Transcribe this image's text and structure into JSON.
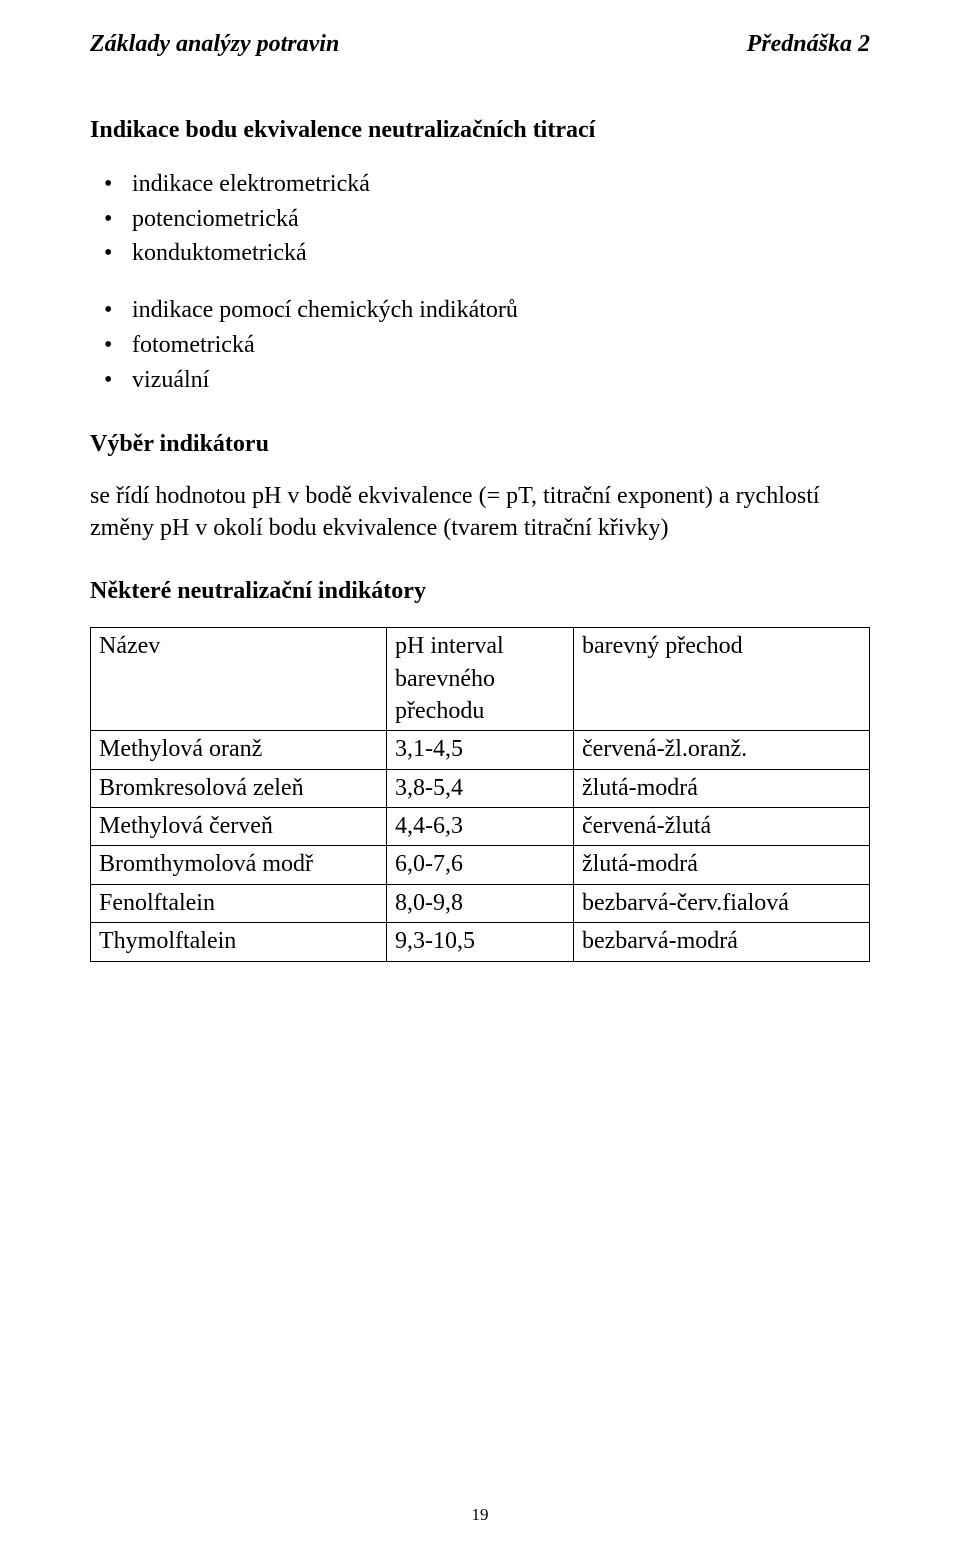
{
  "header": {
    "left": "Základy analýzy potravin",
    "right": "Přednáška 2"
  },
  "title_main": "Indikace bodu ekvivalence neutralizačních titrací",
  "bullets_block1": [
    "indikace elektrometrická",
    "potenciometrická",
    "konduktometrická"
  ],
  "bullets_block2": [
    "indikace pomocí chemických indikátorů",
    "fotometrická",
    "vizuální"
  ],
  "section_vyber_title": "Výběr indikátoru",
  "vyber_text": "se řídí hodnotou pH v bodě ekvivalence (= pT, titrační exponent) a rychlostí změny pH v okolí bodu ekvivalence (tvarem titrační křivky)",
  "section_table_title": "Některé neutralizační indikátory",
  "table": {
    "columns": [
      {
        "lines": [
          "Název"
        ],
        "width": "38%"
      },
      {
        "lines": [
          "pH interval",
          "barevného",
          "přechodu"
        ],
        "width": "24%"
      },
      {
        "lines": [
          "barevný přechod"
        ],
        "width": "38%"
      }
    ],
    "rows": [
      [
        "Methylová oranž",
        "3,1-4,5",
        "červená-žl.oranž."
      ],
      [
        "Bromkresolová zeleň",
        "3,8-5,4",
        "žlutá-modrá"
      ],
      [
        "Methylová červeň",
        "4,4-6,3",
        "červená-žlutá"
      ],
      [
        "Bromthymolová modř",
        "6,0-7,6",
        "žlutá-modrá"
      ],
      [
        "Fenolftalein",
        "8,0-9,8",
        "bezbarvá-červ.fialová"
      ],
      [
        "Thymolftalein",
        "9,3-10,5",
        "bezbarvá-modrá"
      ]
    ]
  },
  "page_number": "19"
}
